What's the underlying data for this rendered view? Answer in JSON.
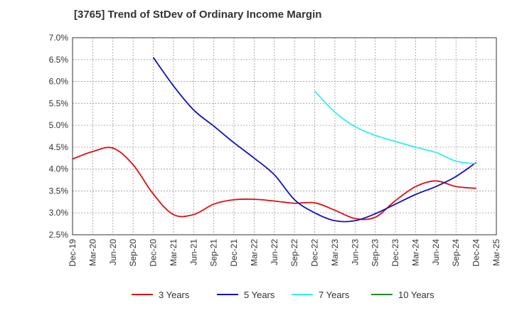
{
  "chart_data": {
    "type": "line",
    "title": "[3765]  Trend of StDev of Ordinary Income Margin",
    "xlabel": "",
    "ylabel": "",
    "x": [
      "Dec-19",
      "Mar-20",
      "Jun-20",
      "Sep-20",
      "Dec-20",
      "Mar-21",
      "Jun-21",
      "Sep-21",
      "Dec-21",
      "Mar-22",
      "Jun-22",
      "Sep-22",
      "Dec-22",
      "Mar-23",
      "Jun-23",
      "Sep-23",
      "Dec-23",
      "Mar-24",
      "Jun-24",
      "Sep-24",
      "Dec-24",
      "Mar-25"
    ],
    "y_ticks": [
      "7.0%",
      "6.5%",
      "6.0%",
      "5.5%",
      "5.0%",
      "4.5%",
      "4.0%",
      "3.5%",
      "3.0%",
      "2.5%"
    ],
    "ylim": [
      2.5,
      7.0
    ],
    "grid": true,
    "legend_position": "bottom",
    "series": [
      {
        "name": "3 Years",
        "color": "#dd1111",
        "values": [
          4.23,
          4.4,
          4.48,
          4.1,
          3.43,
          2.96,
          2.96,
          3.2,
          3.3,
          3.31,
          3.27,
          3.22,
          3.23,
          3.06,
          2.87,
          2.9,
          3.28,
          3.6,
          3.73,
          3.6,
          3.56,
          null
        ]
      },
      {
        "name": "5 Years",
        "color": "#1111bb",
        "values": [
          null,
          null,
          null,
          null,
          6.55,
          5.9,
          5.35,
          4.98,
          4.6,
          4.25,
          3.87,
          3.3,
          3.0,
          2.82,
          2.82,
          2.98,
          3.2,
          3.42,
          3.6,
          3.83,
          4.15,
          null
        ]
      },
      {
        "name": "7 Years",
        "color": "#33eeee",
        "values": [
          null,
          null,
          null,
          null,
          null,
          null,
          null,
          null,
          null,
          null,
          null,
          null,
          5.78,
          5.3,
          4.97,
          4.77,
          4.63,
          4.5,
          4.38,
          4.18,
          4.12,
          null
        ]
      },
      {
        "name": "10 Years",
        "color": "#228822",
        "values": [
          null,
          null,
          null,
          null,
          null,
          null,
          null,
          null,
          null,
          null,
          null,
          null,
          null,
          null,
          null,
          null,
          null,
          null,
          null,
          null,
          null,
          null
        ]
      }
    ]
  }
}
